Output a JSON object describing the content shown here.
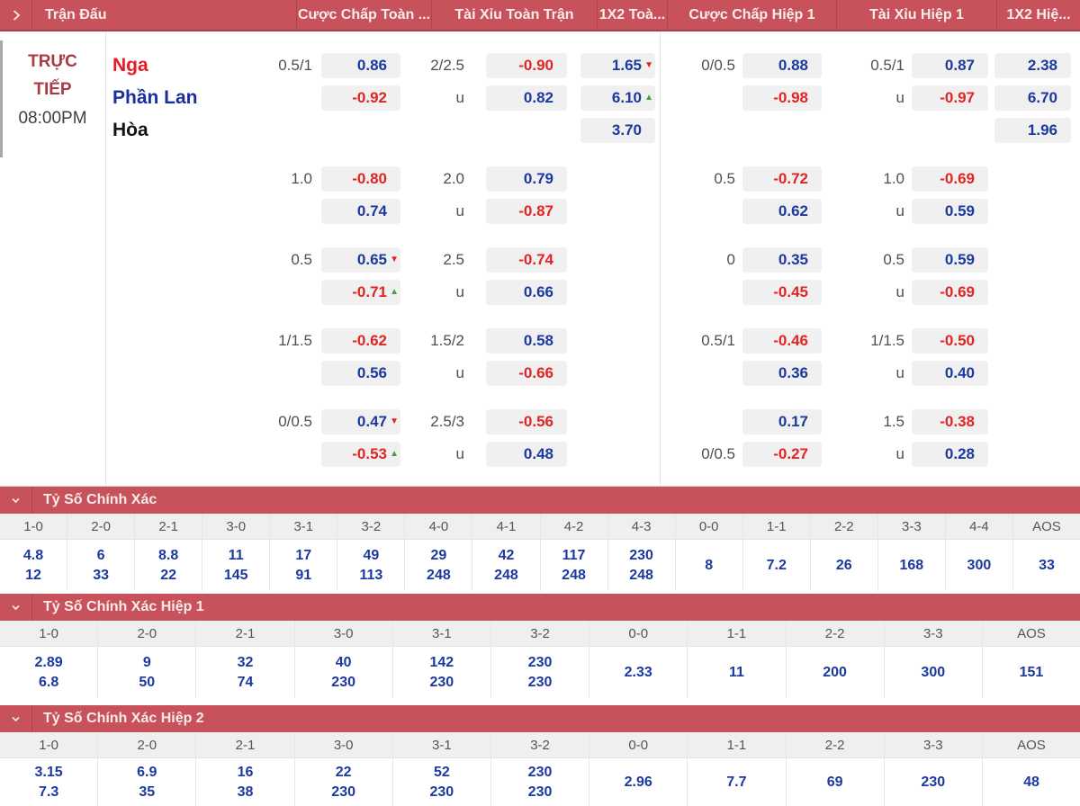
{
  "colors": {
    "header_bar": "#c7525b",
    "odds_positive_blue": "#1c399f",
    "odds_negative_red": "#e22424",
    "trend_up_green": "#3fa33f",
    "trend_down_red": "#e22424",
    "home_team_red": "#e51c23",
    "away_team_blue": "#1c2f9e",
    "live_label_red": "#ab3b42",
    "odds_box_bg": "#f0f0f0"
  },
  "header": {
    "columns": {
      "match": "Trận Đấu",
      "handicap_ft": "Cược Chấp Toàn ...",
      "ou_ft": "Tài Xỉu Toàn Trận",
      "x12_ft": "1X2 Toà...",
      "handicap_h1": "Cược Chấp Hiệp 1",
      "ou_h1": "Tài Xỉu Hiệp 1",
      "x12_h1": "1X2 Hiệ..."
    }
  },
  "match": {
    "status": "TRỰC TIẾP",
    "time": "08:00PM",
    "home": "Nga",
    "away": "Phần Lan",
    "draw": "Hòa"
  },
  "blocks": [
    {
      "hdp_ft": {
        "line1": "0.5/1",
        "v1": "0.86",
        "v2": "-0.92"
      },
      "ou_ft": {
        "line1": "2/2.5",
        "line2": "u",
        "v1": "-0.90",
        "v2": "0.82"
      },
      "x12_ft": {
        "v1": "1.65",
        "v1_arrow": "▼",
        "v2": "6.10",
        "v2_arrow": "▲",
        "v3": "3.70"
      },
      "hdp_h1": {
        "line1": "0/0.5",
        "v1": "0.88",
        "v2": "-0.98"
      },
      "ou_h1": {
        "line1": "0.5/1",
        "line2": "u",
        "v1": "0.87",
        "v2": "-0.97"
      },
      "x12_h1": {
        "v1": "2.38",
        "v2": "6.70",
        "v3": "1.96"
      }
    },
    {
      "hdp_ft": {
        "line1": "1.0",
        "v1": "-0.80",
        "v2": "0.74"
      },
      "ou_ft": {
        "line1": "2.0",
        "line2": "u",
        "v1": "0.79",
        "v2": "-0.87"
      },
      "hdp_h1": {
        "line1": "0.5",
        "v1": "-0.72",
        "v2": "0.62"
      },
      "ou_h1": {
        "line1": "1.0",
        "line2": "u",
        "v1": "-0.69",
        "v2": "0.59"
      }
    },
    {
      "hdp_ft": {
        "line1": "0.5",
        "v1": "0.65",
        "v1_arrow": "▼",
        "v2": "-0.71",
        "v2_arrow": "▲"
      },
      "ou_ft": {
        "line1": "2.5",
        "line2": "u",
        "v1": "-0.74",
        "v2": "0.66"
      },
      "hdp_h1": {
        "line1": "0",
        "v1": "0.35",
        "v2": "-0.45"
      },
      "ou_h1": {
        "line1": "0.5",
        "line2": "u",
        "v1": "0.59",
        "v2": "-0.69"
      }
    },
    {
      "hdp_ft": {
        "line1": "1/1.5",
        "v1": "-0.62",
        "v2": "0.56"
      },
      "ou_ft": {
        "line1": "1.5/2",
        "line2": "u",
        "v1": "0.58",
        "v2": "-0.66"
      },
      "hdp_h1": {
        "line1": "0.5/1",
        "v1": "-0.46",
        "v2": "0.36"
      },
      "ou_h1": {
        "line1": "1/1.5",
        "line2": "u",
        "v1": "-0.50",
        "v2": "0.40"
      }
    },
    {
      "hdp_ft": {
        "line1": "0/0.5",
        "v1": "0.47",
        "v1_arrow": "▼",
        "v2": "-0.53",
        "v2_arrow": "▲"
      },
      "ou_ft": {
        "line1": "2.5/3",
        "line2": "u",
        "v1": "-0.56",
        "v2": "0.48"
      },
      "hdp_h1": {
        "line2": "0/0.5",
        "v1": "0.17",
        "v2": "-0.27"
      },
      "ou_h1": {
        "line1": "1.5",
        "line2": "u",
        "v1": "-0.38",
        "v2": "0.28"
      }
    }
  ],
  "score_sections": [
    {
      "title": "Tỷ Số Chính Xác",
      "columns": [
        {
          "score": "1-0",
          "values": [
            "4.8",
            "12"
          ]
        },
        {
          "score": "2-0",
          "values": [
            "6",
            "33"
          ]
        },
        {
          "score": "2-1",
          "values": [
            "8.8",
            "22"
          ]
        },
        {
          "score": "3-0",
          "values": [
            "11",
            "145"
          ]
        },
        {
          "score": "3-1",
          "values": [
            "17",
            "91"
          ]
        },
        {
          "score": "3-2",
          "values": [
            "49",
            "113"
          ]
        },
        {
          "score": "4-0",
          "values": [
            "29",
            "248"
          ]
        },
        {
          "score": "4-1",
          "values": [
            "42",
            "248"
          ]
        },
        {
          "score": "4-2",
          "values": [
            "117",
            "248"
          ]
        },
        {
          "score": "4-3",
          "values": [
            "230",
            "248"
          ]
        },
        {
          "score": "0-0",
          "values": [
            "8"
          ]
        },
        {
          "score": "1-1",
          "values": [
            "7.2"
          ]
        },
        {
          "score": "2-2",
          "values": [
            "26"
          ]
        },
        {
          "score": "3-3",
          "values": [
            "168"
          ]
        },
        {
          "score": "4-4",
          "values": [
            "300"
          ]
        },
        {
          "score": "AOS",
          "values": [
            "33"
          ]
        }
      ]
    },
    {
      "title": "Tỷ Số Chính Xác Hiệp 1",
      "columns": [
        {
          "score": "1-0",
          "values": [
            "2.89",
            "6.8"
          ]
        },
        {
          "score": "2-0",
          "values": [
            "9",
            "50"
          ]
        },
        {
          "score": "2-1",
          "values": [
            "32",
            "74"
          ]
        },
        {
          "score": "3-0",
          "values": [
            "40",
            "230"
          ]
        },
        {
          "score": "3-1",
          "values": [
            "142",
            "230"
          ]
        },
        {
          "score": "3-2",
          "values": [
            "230",
            "230"
          ]
        },
        {
          "score": "0-0",
          "values": [
            "2.33"
          ]
        },
        {
          "score": "1-1",
          "values": [
            "11"
          ]
        },
        {
          "score": "2-2",
          "values": [
            "200"
          ]
        },
        {
          "score": "3-3",
          "values": [
            "300"
          ]
        },
        {
          "score": "AOS",
          "values": [
            "151"
          ]
        }
      ]
    },
    {
      "title": "Tỷ Số Chính Xác Hiệp 2",
      "columns": [
        {
          "score": "1-0",
          "values": [
            "3.15",
            "7.3"
          ]
        },
        {
          "score": "2-0",
          "values": [
            "6.9",
            "35"
          ]
        },
        {
          "score": "2-1",
          "values": [
            "16",
            "38"
          ]
        },
        {
          "score": "3-0",
          "values": [
            "22",
            "230"
          ]
        },
        {
          "score": "3-1",
          "values": [
            "52",
            "230"
          ]
        },
        {
          "score": "3-2",
          "values": [
            "230",
            "230"
          ]
        },
        {
          "score": "0-0",
          "values": [
            "2.96"
          ]
        },
        {
          "score": "1-1",
          "values": [
            "7.7"
          ]
        },
        {
          "score": "2-2",
          "values": [
            "69"
          ]
        },
        {
          "score": "3-3",
          "values": [
            "230"
          ]
        },
        {
          "score": "AOS",
          "values": [
            "48"
          ]
        }
      ]
    }
  ]
}
